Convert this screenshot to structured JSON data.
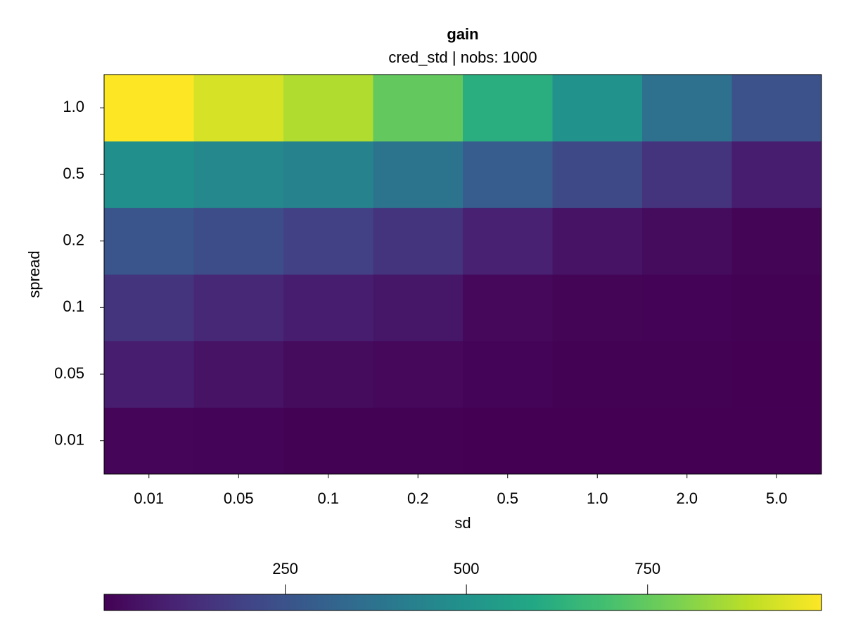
{
  "chart_data": {
    "type": "heatmap",
    "title": "gain",
    "subtitle": "cred_std | nobs: 1000",
    "x_label": "sd",
    "y_label": "spread",
    "x": [
      "0.01",
      "0.05",
      "0.1",
      "0.2",
      "0.5",
      "1.0",
      "2.0",
      "5.0"
    ],
    "y": [
      "0.01",
      "0.05",
      "0.1",
      "0.2",
      "0.5",
      "1.0"
    ],
    "values": [
      [
        15,
        8,
        4,
        2,
        1,
        0,
        0,
        0
      ],
      [
        80,
        50,
        30,
        20,
        8,
        4,
        2,
        1
      ],
      [
        150,
        110,
        80,
        60,
        20,
        10,
        5,
        3
      ],
      [
        260,
        230,
        190,
        150,
        90,
        50,
        30,
        10
      ],
      [
        490,
        460,
        440,
        380,
        290,
        220,
        150,
        80
      ],
      [
        990,
        930,
        870,
        750,
        620,
        500,
        370,
        250
      ]
    ],
    "colormap": "viridis",
    "zlim": [
      0,
      990
    ],
    "zticks": [
      250,
      500,
      750
    ]
  }
}
